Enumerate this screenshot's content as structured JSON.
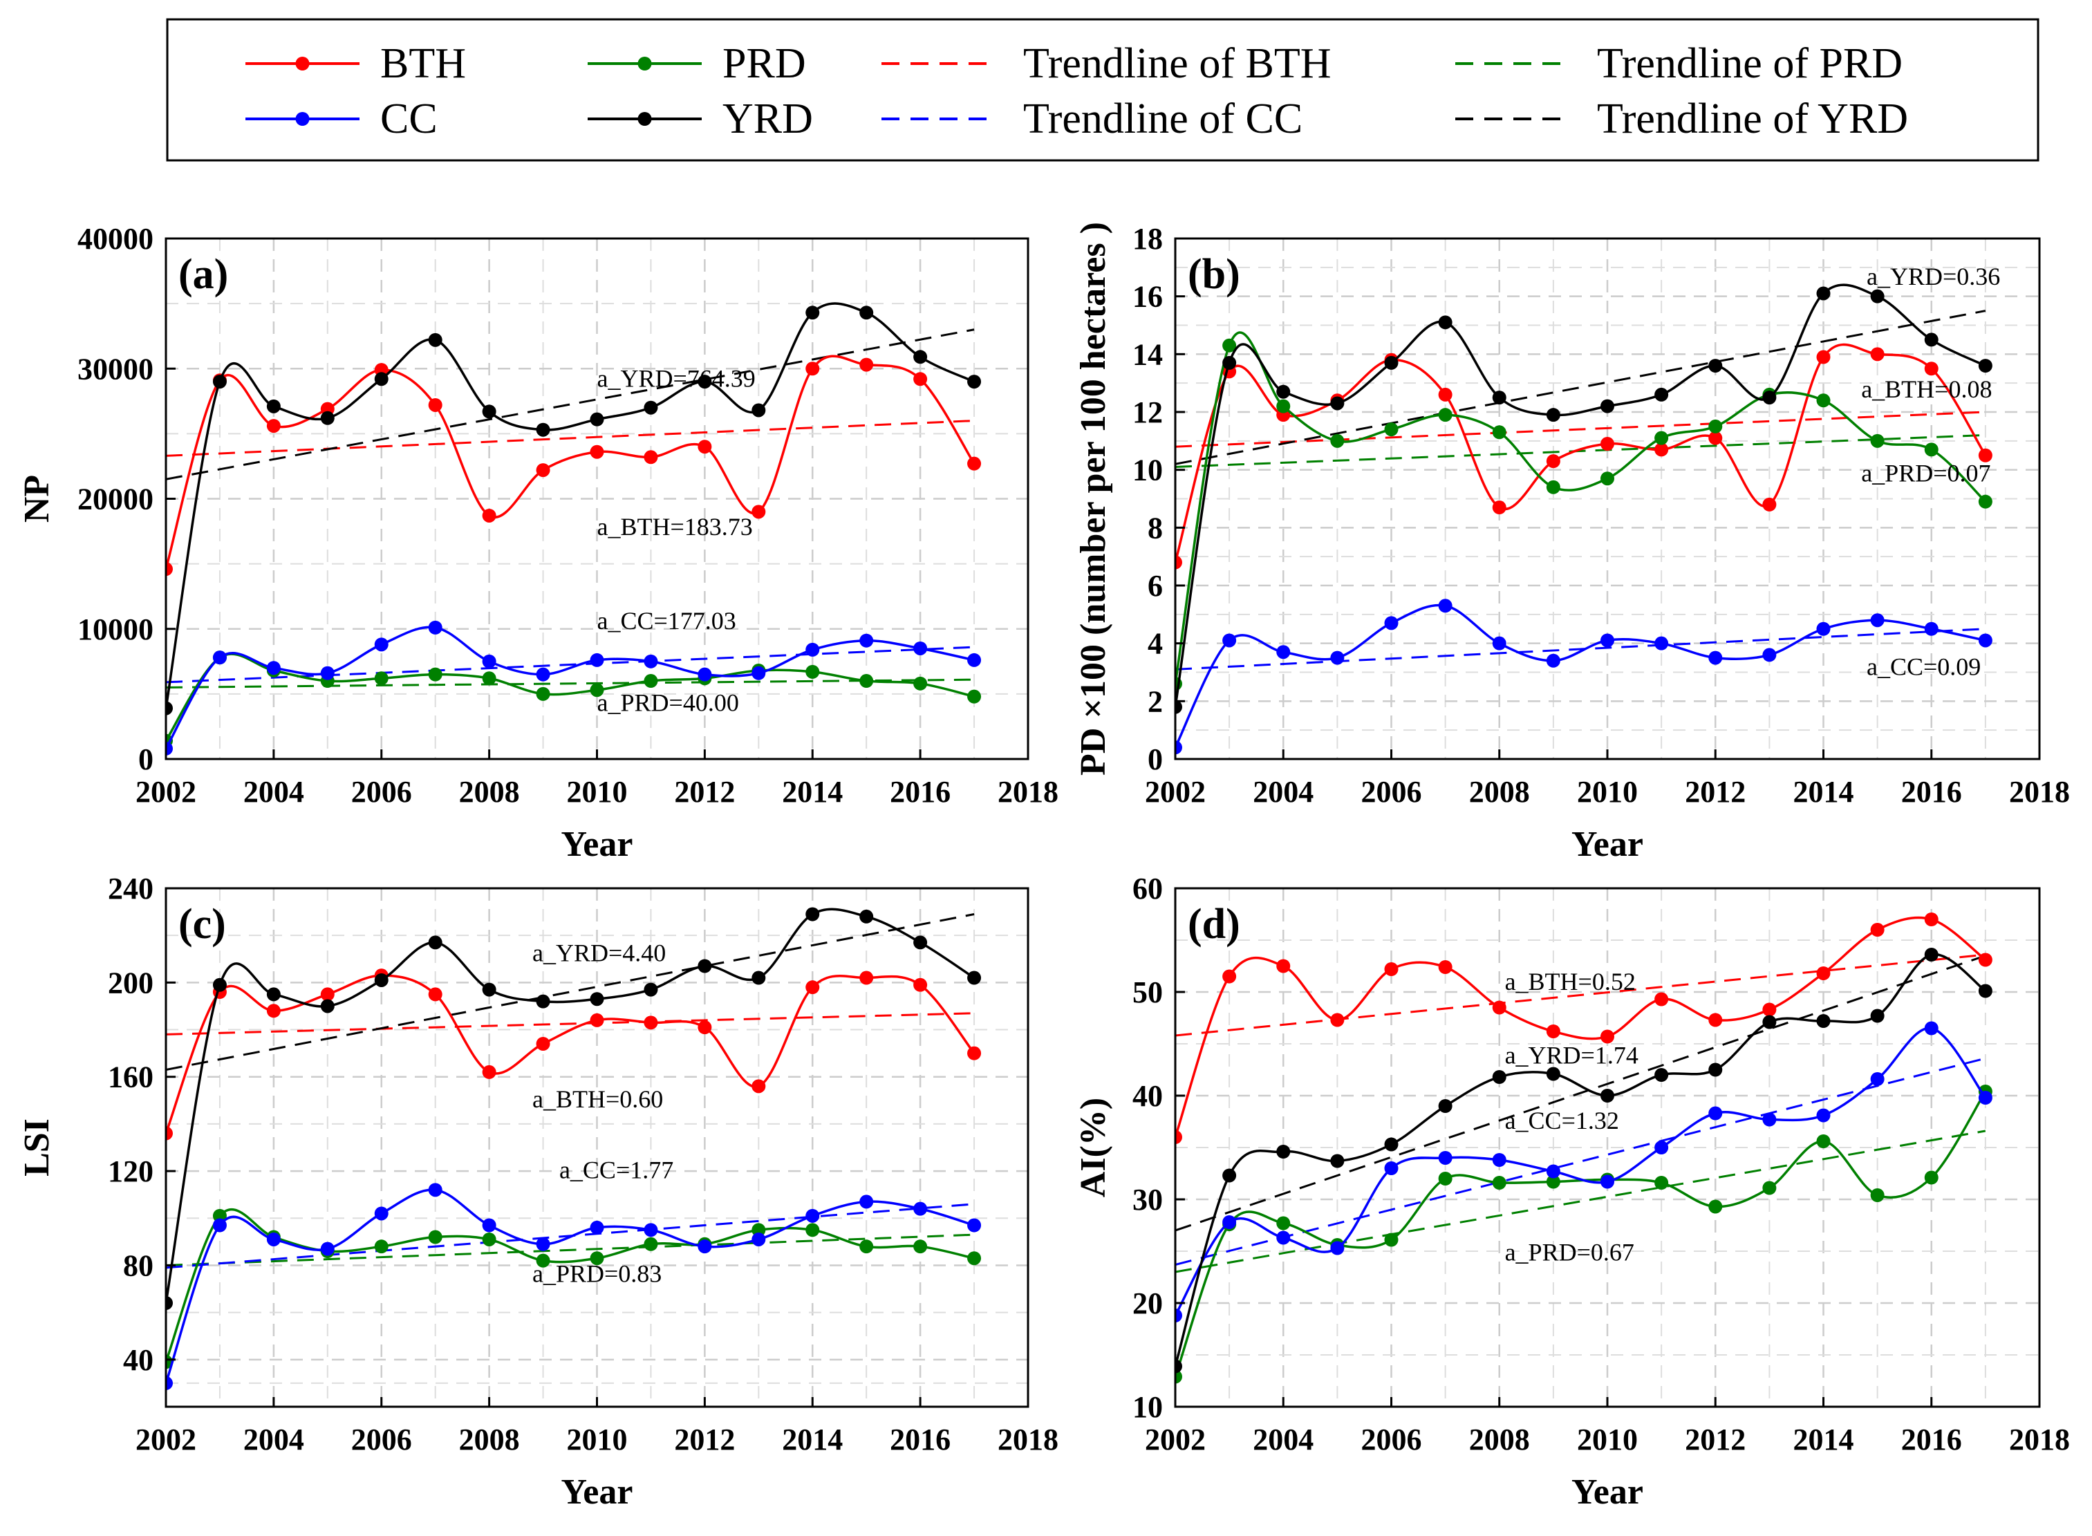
{
  "legend": {
    "entries": [
      {
        "label": "BTH",
        "color": "#ff0000",
        "style": "series"
      },
      {
        "label": "PRD",
        "color": "#008000",
        "style": "series"
      },
      {
        "label": "Trendline of BTH",
        "color": "#ff0000",
        "style": "trend"
      },
      {
        "label": "Trendline of PRD",
        "color": "#008000",
        "style": "trend"
      },
      {
        "label": "CC",
        "color": "#0000ff",
        "style": "series"
      },
      {
        "label": "YRD",
        "color": "#000000",
        "style": "series"
      },
      {
        "label": "Trendline of CC",
        "color": "#0000ff",
        "style": "trend"
      },
      {
        "label": "Trendline of YRD",
        "color": "#000000",
        "style": "trend"
      }
    ]
  },
  "chart_data": [
    {
      "type": "line",
      "panel_label": "(a)",
      "xlabel": "Year",
      "ylabel": "NP",
      "xlim": [
        2002,
        2018
      ],
      "ylim": [
        0,
        40000
      ],
      "xticks": [
        2002,
        2004,
        2006,
        2008,
        2010,
        2012,
        2014,
        2016,
        2018
      ],
      "yticks": [
        0,
        10000,
        20000,
        30000,
        40000
      ],
      "grid": true,
      "x": [
        2002,
        2003,
        2004,
        2005,
        2006,
        2007,
        2008,
        2009,
        2010,
        2011,
        2012,
        2013,
        2014,
        2015,
        2016,
        2017
      ],
      "series": [
        {
          "name": "BTH",
          "color": "#ff0000",
          "values": [
            14600,
            29100,
            25600,
            26900,
            29900,
            27200,
            18700,
            22200,
            23600,
            23200,
            24000,
            19000,
            30000,
            30300,
            29200,
            22700
          ]
        },
        {
          "name": "PRD",
          "color": "#008000",
          "values": [
            1400,
            7800,
            6800,
            6000,
            6200,
            6500,
            6200,
            5000,
            5300,
            6000,
            6200,
            6800,
            6700,
            6000,
            5800,
            4800
          ]
        },
        {
          "name": "CC",
          "color": "#0000ff",
          "values": [
            800,
            7800,
            7000,
            6600,
            8800,
            10100,
            7500,
            6500,
            7600,
            7500,
            6500,
            6600,
            8400,
            9100,
            8500,
            7600
          ]
        },
        {
          "name": "YRD",
          "color": "#000000",
          "values": [
            3900,
            29000,
            27100,
            26200,
            29200,
            32200,
            26700,
            25300,
            26100,
            27000,
            29000,
            26800,
            34300,
            34300,
            30900,
            29000
          ]
        }
      ],
      "trendlines": [
        {
          "name": "Trendline of BTH",
          "color": "#ff0000",
          "start": 23300,
          "end": 26000
        },
        {
          "name": "Trendline of PRD",
          "color": "#008000",
          "start": 5500,
          "end": 6100
        },
        {
          "name": "Trendline of CC",
          "color": "#0000ff",
          "start": 5900,
          "end": 8600
        },
        {
          "name": "Trendline of YRD",
          "color": "#000000",
          "start": 21500,
          "end": 33000
        }
      ],
      "annotations": [
        {
          "text": "a_YRD=764.39",
          "x": 2010.0,
          "y": 28600
        },
        {
          "text": "a_BTH=183.73",
          "x": 2010.0,
          "y": 17200
        },
        {
          "text": "a_CC=177.03",
          "x": 2010.0,
          "y": 10000
        },
        {
          "text": "a_PRD=40.00",
          "x": 2010.0,
          "y": 3700
        }
      ]
    },
    {
      "type": "line",
      "panel_label": "(b)",
      "xlabel": "Year",
      "ylabel": "PD ×100 (number per 100 hectares )",
      "xlim": [
        2002,
        2018
      ],
      "ylim": [
        0,
        18
      ],
      "xticks": [
        2002,
        2004,
        2006,
        2008,
        2010,
        2012,
        2014,
        2016,
        2018
      ],
      "yticks": [
        0,
        2,
        4,
        6,
        8,
        10,
        12,
        14,
        16,
        18
      ],
      "grid": true,
      "x": [
        2002,
        2003,
        2004,
        2005,
        2006,
        2007,
        2008,
        2009,
        2010,
        2011,
        2012,
        2013,
        2014,
        2015,
        2016,
        2017
      ],
      "series": [
        {
          "name": "BTH",
          "color": "#ff0000",
          "values": [
            6.8,
            13.4,
            11.9,
            12.4,
            13.8,
            12.6,
            8.7,
            10.3,
            10.9,
            10.7,
            11.1,
            8.8,
            13.9,
            14.0,
            13.5,
            10.5
          ]
        },
        {
          "name": "PRD",
          "color": "#008000",
          "values": [
            2.6,
            14.3,
            12.2,
            11.0,
            11.4,
            11.9,
            11.3,
            9.4,
            9.7,
            11.1,
            11.5,
            12.6,
            12.4,
            11.0,
            10.7,
            8.9
          ]
        },
        {
          "name": "CC",
          "color": "#0000ff",
          "values": [
            0.4,
            4.1,
            3.7,
            3.5,
            4.7,
            5.3,
            4.0,
            3.4,
            4.1,
            4.0,
            3.5,
            3.6,
            4.5,
            4.8,
            4.5,
            4.1
          ]
        },
        {
          "name": "YRD",
          "color": "#000000",
          "values": [
            1.8,
            13.7,
            12.7,
            12.3,
            13.7,
            15.1,
            12.5,
            11.9,
            12.2,
            12.6,
            13.6,
            12.5,
            16.1,
            16.0,
            14.5,
            13.6
          ]
        }
      ],
      "trendlines": [
        {
          "name": "Trendline of BTH",
          "color": "#ff0000",
          "start": 10.8,
          "end": 12.0
        },
        {
          "name": "Trendline of PRD",
          "color": "#008000",
          "start": 10.1,
          "end": 11.2
        },
        {
          "name": "Trendline of CC",
          "color": "#0000ff",
          "start": 3.1,
          "end": 4.5
        },
        {
          "name": "Trendline of YRD",
          "color": "#000000",
          "start": 10.2,
          "end": 15.5
        }
      ],
      "annotations": [
        {
          "text": "a_YRD=0.36",
          "x": 2014.8,
          "y": 16.4
        },
        {
          "text": "a_BTH=0.08",
          "x": 2014.7,
          "y": 12.5
        },
        {
          "text": "a_PRD=0.07",
          "x": 2014.7,
          "y": 9.6
        },
        {
          "text": "a_CC=0.09",
          "x": 2014.8,
          "y": 2.9
        }
      ]
    },
    {
      "type": "line",
      "panel_label": "(c)",
      "xlabel": "Year",
      "ylabel": "LSI",
      "xlim": [
        2002,
        2018
      ],
      "ylim": [
        20,
        240
      ],
      "xticks": [
        2002,
        2004,
        2006,
        2008,
        2010,
        2012,
        2014,
        2016,
        2018
      ],
      "yticks": [
        40,
        80,
        120,
        160,
        200,
        240
      ],
      "grid": true,
      "x": [
        2002,
        2003,
        2004,
        2005,
        2006,
        2007,
        2008,
        2009,
        2010,
        2011,
        2012,
        2013,
        2014,
        2015,
        2016,
        2017
      ],
      "series": [
        {
          "name": "BTH",
          "color": "#ff0000",
          "values": [
            136,
            196,
            188,
            195,
            203,
            195,
            162,
            174,
            184,
            183,
            181,
            156,
            198,
            202,
            199,
            170
          ]
        },
        {
          "name": "PRD",
          "color": "#008000",
          "values": [
            39,
            101,
            92,
            86,
            88,
            92,
            91,
            82,
            83,
            89,
            89,
            95,
            95,
            88,
            88,
            83
          ]
        },
        {
          "name": "CC",
          "color": "#0000ff",
          "values": [
            30,
            97,
            91,
            87,
            102,
            112,
            97,
            89,
            96,
            95,
            88,
            91,
            101,
            107,
            104,
            97
          ]
        },
        {
          "name": "YRD",
          "color": "#000000",
          "values": [
            64,
            199,
            195,
            190,
            201,
            217,
            197,
            192,
            193,
            197,
            207,
            202,
            229,
            228,
            217,
            202
          ]
        }
      ],
      "trendlines": [
        {
          "name": "Trendline of BTH",
          "color": "#ff0000",
          "start": 178,
          "end": 187
        },
        {
          "name": "Trendline of PRD",
          "color": "#008000",
          "start": 80,
          "end": 93
        },
        {
          "name": "Trendline of CC",
          "color": "#0000ff",
          "start": 79,
          "end": 106
        },
        {
          "name": "Trendline of YRD",
          "color": "#000000",
          "start": 163,
          "end": 229
        }
      ],
      "annotations": [
        {
          "text": "a_YRD=4.40",
          "x": 2008.8,
          "y": 209
        },
        {
          "text": "a_BTH=0.60",
          "x": 2008.8,
          "y": 147
        },
        {
          "text": "a_CC=1.77",
          "x": 2009.3,
          "y": 117
        },
        {
          "text": "a_PRD=0.83",
          "x": 2008.8,
          "y": 73
        }
      ]
    },
    {
      "type": "line",
      "panel_label": "(d)",
      "xlabel": "Year",
      "ylabel": "AI(%)",
      "xlim": [
        2002,
        2018
      ],
      "ylim": [
        10,
        60
      ],
      "xticks": [
        2002,
        2004,
        2006,
        2008,
        2010,
        2012,
        2014,
        2016,
        2018
      ],
      "yticks": [
        10,
        20,
        30,
        40,
        50,
        60
      ],
      "grid": true,
      "x": [
        2002,
        2003,
        2004,
        2005,
        2006,
        2007,
        2008,
        2009,
        2010,
        2011,
        2012,
        2013,
        2014,
        2015,
        2016,
        2017
      ],
      "series": [
        {
          "name": "BTH",
          "color": "#ff0000",
          "values": [
            36.0,
            51.5,
            52.5,
            47.3,
            52.2,
            52.4,
            48.5,
            46.2,
            45.7,
            49.3,
            47.3,
            48.3,
            51.8,
            56.0,
            57.0,
            53.1
          ]
        },
        {
          "name": "PRD",
          "color": "#008000",
          "values": [
            12.9,
            27.6,
            27.7,
            25.6,
            26.1,
            32.0,
            31.6,
            31.7,
            31.9,
            31.6,
            29.3,
            31.1,
            35.6,
            30.4,
            32.1,
            40.4
          ]
        },
        {
          "name": "CC",
          "color": "#0000ff",
          "values": [
            18.8,
            27.8,
            26.3,
            25.3,
            33.0,
            34.0,
            33.8,
            32.7,
            31.7,
            35.0,
            38.3,
            37.7,
            38.1,
            41.6,
            46.5,
            39.8
          ]
        },
        {
          "name": "YRD",
          "color": "#000000",
          "values": [
            13.9,
            32.3,
            34.6,
            33.7,
            35.3,
            39.0,
            41.8,
            42.1,
            40.0,
            42.0,
            42.5,
            47.1,
            47.2,
            47.7,
            53.6,
            50.1
          ]
        }
      ],
      "trendlines": [
        {
          "name": "Trendline of BTH",
          "color": "#ff0000",
          "start": 45.8,
          "end": 53.6
        },
        {
          "name": "Trendline of PRD",
          "color": "#008000",
          "start": 23.0,
          "end": 36.6
        },
        {
          "name": "Trendline of CC",
          "color": "#0000ff",
          "start": 23.7,
          "end": 43.6
        },
        {
          "name": "Trendline of YRD",
          "color": "#000000",
          "start": 27.0,
          "end": 53.5
        }
      ],
      "annotations": [
        {
          "text": "a_BTH=0.52",
          "x": 2008.1,
          "y": 50.2
        },
        {
          "text": "a_YRD=1.74",
          "x": 2008.1,
          "y": 43.1
        },
        {
          "text": "a_CC=1.32",
          "x": 2008.1,
          "y": 36.8
        },
        {
          "text": "a_PRD=0.67",
          "x": 2008.1,
          "y": 24.1
        }
      ]
    }
  ]
}
